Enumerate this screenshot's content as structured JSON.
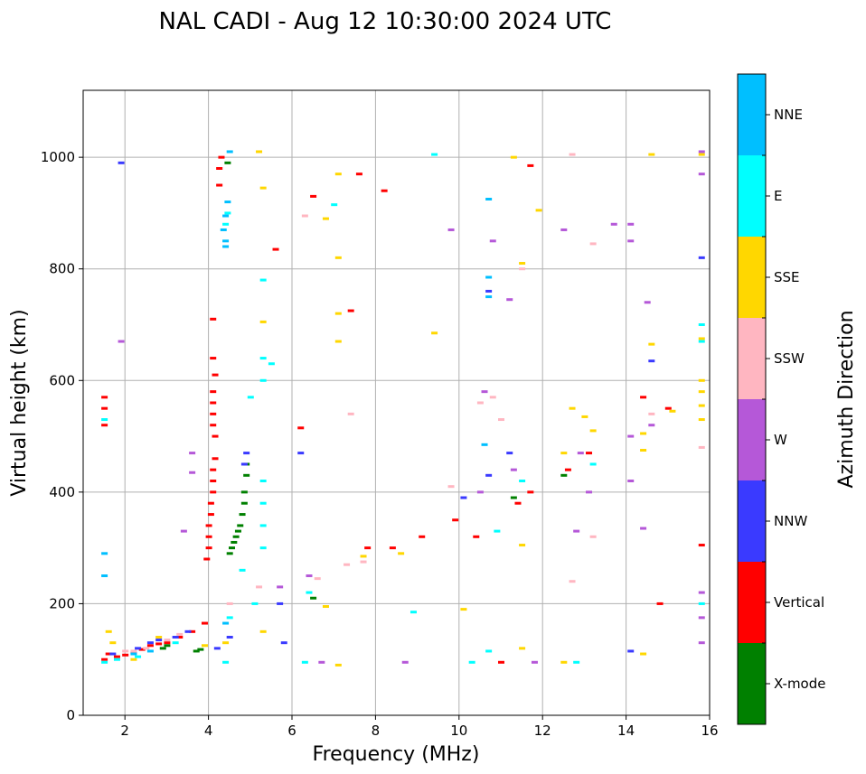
{
  "chart_data": {
    "type": "scatter",
    "title": "NAL CADI - Aug 12 10:30:00 2024 UTC",
    "xlabel": "Frequency (MHz)",
    "ylabel": "Virtual height (km)",
    "xlim": [
      1,
      16
    ],
    "ylim": [
      0,
      1120
    ],
    "xticks": [
      2,
      4,
      6,
      8,
      10,
      12,
      14,
      16
    ],
    "yticks": [
      0,
      200,
      400,
      600,
      800,
      1000
    ],
    "grid": true,
    "colorbar": {
      "label": "Azimuth Direction",
      "categories": [
        {
          "name": "X-mode",
          "color": "#008000"
        },
        {
          "name": "Vertical",
          "color": "#ff0000"
        },
        {
          "name": "NNW",
          "color": "#3a3aff"
        },
        {
          "name": "W",
          "color": "#b558d8"
        },
        {
          "name": "SSW",
          "color": "#ffb6c1"
        },
        {
          "name": "SSE",
          "color": "#ffd700"
        },
        {
          "name": "E",
          "color": "#00ffff"
        },
        {
          "name": "NNE",
          "color": "#00bfff"
        }
      ]
    },
    "series": [
      {
        "name": "X-mode",
        "points": [
          [
            2.9,
            120
          ],
          [
            3.0,
            125
          ],
          [
            3.7,
            115
          ],
          [
            3.8,
            118
          ],
          [
            4.5,
            290
          ],
          [
            4.55,
            300
          ],
          [
            4.6,
            310
          ],
          [
            4.65,
            320
          ],
          [
            4.7,
            330
          ],
          [
            4.75,
            340
          ],
          [
            4.8,
            360
          ],
          [
            4.85,
            380
          ],
          [
            4.85,
            400
          ],
          [
            4.9,
            430
          ],
          [
            4.9,
            450
          ],
          [
            4.45,
            990
          ],
          [
            12.5,
            430
          ],
          [
            11.3,
            390
          ],
          [
            6.5,
            210
          ]
        ]
      },
      {
        "name": "Vertical",
        "points": [
          [
            1.5,
            100
          ],
          [
            1.6,
            110
          ],
          [
            1.8,
            105
          ],
          [
            2.0,
            108
          ],
          [
            2.2,
            112
          ],
          [
            2.4,
            118
          ],
          [
            2.6,
            125
          ],
          [
            2.8,
            128
          ],
          [
            3.0,
            130
          ],
          [
            3.3,
            140
          ],
          [
            3.6,
            150
          ],
          [
            3.9,
            165
          ],
          [
            3.95,
            280
          ],
          [
            4.0,
            300
          ],
          [
            4.0,
            320
          ],
          [
            4.0,
            340
          ],
          [
            4.05,
            360
          ],
          [
            4.05,
            380
          ],
          [
            4.1,
            400
          ],
          [
            4.1,
            420
          ],
          [
            4.1,
            440
          ],
          [
            4.15,
            460
          ],
          [
            4.15,
            500
          ],
          [
            4.1,
            520
          ],
          [
            4.1,
            540
          ],
          [
            4.1,
            560
          ],
          [
            4.1,
            580
          ],
          [
            4.15,
            610
          ],
          [
            4.1,
            640
          ],
          [
            4.1,
            710
          ],
          [
            4.25,
            950
          ],
          [
            4.25,
            980
          ],
          [
            4.3,
            1000
          ],
          [
            1.5,
            520
          ],
          [
            1.5,
            550
          ],
          [
            1.5,
            570
          ],
          [
            7.6,
            970
          ],
          [
            8.2,
            940
          ],
          [
            6.5,
            930
          ],
          [
            7.8,
            300
          ],
          [
            8.4,
            300
          ],
          [
            9.1,
            320
          ],
          [
            9.9,
            350
          ],
          [
            10.4,
            320
          ],
          [
            11.7,
            400
          ],
          [
            11.4,
            380
          ],
          [
            12.6,
            440
          ],
          [
            13.1,
            470
          ],
          [
            14.4,
            570
          ],
          [
            14.8,
            200
          ],
          [
            15.0,
            550
          ],
          [
            15.8,
            305
          ],
          [
            11.0,
            95
          ],
          [
            11.7,
            985
          ],
          [
            6.2,
            515
          ],
          [
            5.6,
            835
          ],
          [
            7.4,
            725
          ]
        ]
      },
      {
        "name": "NNW",
        "points": [
          [
            1.7,
            110
          ],
          [
            2.3,
            120
          ],
          [
            2.6,
            130
          ],
          [
            2.8,
            135
          ],
          [
            3.2,
            140
          ],
          [
            3.5,
            150
          ],
          [
            4.2,
            120
          ],
          [
            4.5,
            140
          ],
          [
            4.85,
            450
          ],
          [
            4.9,
            470
          ],
          [
            5.7,
            200
          ],
          [
            6.2,
            470
          ],
          [
            10.7,
            760
          ],
          [
            10.7,
            430
          ],
          [
            11.2,
            470
          ],
          [
            14.1,
            115
          ],
          [
            14.6,
            635
          ],
          [
            15.8,
            820
          ],
          [
            1.9,
            990
          ],
          [
            10.1,
            390
          ],
          [
            5.8,
            130
          ]
        ]
      },
      {
        "name": "W",
        "points": [
          [
            3.4,
            330
          ],
          [
            3.6,
            470
          ],
          [
            3.6,
            435
          ],
          [
            5.7,
            230
          ],
          [
            6.4,
            250
          ],
          [
            6.7,
            95
          ],
          [
            8.7,
            95
          ],
          [
            9.8,
            870
          ],
          [
            10.5,
            400
          ],
          [
            10.8,
            850
          ],
          [
            11.2,
            745
          ],
          [
            11.3,
            440
          ],
          [
            12.5,
            870
          ],
          [
            13.1,
            400
          ],
          [
            12.8,
            330
          ],
          [
            13.7,
            880
          ],
          [
            14.1,
            420
          ],
          [
            14.1,
            500
          ],
          [
            14.1,
            880
          ],
          [
            14.1,
            850
          ],
          [
            14.4,
            335
          ],
          [
            14.5,
            740
          ],
          [
            15.8,
            1010
          ],
          [
            15.8,
            970
          ],
          [
            15.8,
            220
          ],
          [
            15.8,
            175
          ],
          [
            15.8,
            130
          ],
          [
            11.8,
            95
          ],
          [
            12.9,
            470
          ],
          [
            14.6,
            520
          ],
          [
            1.9,
            670
          ],
          [
            10.6,
            580
          ]
        ]
      },
      {
        "name": "SSW",
        "points": [
          [
            2.0,
            115
          ],
          [
            2.2,
            115
          ],
          [
            2.5,
            120
          ],
          [
            3.0,
            135
          ],
          [
            3.3,
            145
          ],
          [
            4.5,
            200
          ],
          [
            5.2,
            230
          ],
          [
            6.6,
            245
          ],
          [
            7.3,
            270
          ],
          [
            7.7,
            275
          ],
          [
            9.8,
            410
          ],
          [
            10.5,
            560
          ],
          [
            11.0,
            530
          ],
          [
            12.7,
            240
          ],
          [
            13.2,
            320
          ],
          [
            13.2,
            845
          ],
          [
            12.7,
            1005
          ],
          [
            14.6,
            540
          ],
          [
            15.8,
            480
          ],
          [
            10.8,
            570
          ],
          [
            6.3,
            895
          ],
          [
            7.4,
            540
          ],
          [
            11.5,
            800
          ]
        ]
      },
      {
        "name": "SSE",
        "points": [
          [
            1.6,
            150
          ],
          [
            1.7,
            130
          ],
          [
            2.2,
            100
          ],
          [
            2.8,
            140
          ],
          [
            3.9,
            125
          ],
          [
            4.4,
            130
          ],
          [
            5.3,
            150
          ],
          [
            6.8,
            195
          ],
          [
            7.1,
            90
          ],
          [
            7.1,
            670
          ],
          [
            7.1,
            720
          ],
          [
            7.1,
            820
          ],
          [
            7.1,
            970
          ],
          [
            7.7,
            285
          ],
          [
            8.6,
            290
          ],
          [
            9.4,
            685
          ],
          [
            10.1,
            190
          ],
          [
            11.5,
            305
          ],
          [
            11.5,
            120
          ],
          [
            11.9,
            905
          ],
          [
            12.5,
            470
          ],
          [
            12.7,
            550
          ],
          [
            13.0,
            535
          ],
          [
            13.2,
            510
          ],
          [
            14.4,
            505
          ],
          [
            14.4,
            475
          ],
          [
            14.6,
            665
          ],
          [
            14.6,
            1005
          ],
          [
            15.8,
            1005
          ],
          [
            15.8,
            675
          ],
          [
            15.8,
            600
          ],
          [
            15.8,
            580
          ],
          [
            15.8,
            555
          ],
          [
            15.8,
            530
          ],
          [
            5.3,
            945
          ],
          [
            5.3,
            705
          ],
          [
            5.2,
            1010
          ],
          [
            6.8,
            890
          ],
          [
            11.3,
            1000
          ],
          [
            11.5,
            810
          ],
          [
            12.5,
            95
          ],
          [
            14.4,
            110
          ],
          [
            15.1,
            545
          ]
        ]
      },
      {
        "name": "E",
        "points": [
          [
            1.5,
            95
          ],
          [
            1.8,
            100
          ],
          [
            2.3,
            105
          ],
          [
            3.2,
            130
          ],
          [
            4.4,
            95
          ],
          [
            4.5,
            175
          ],
          [
            5.1,
            200
          ],
          [
            5.3,
            300
          ],
          [
            5.3,
            340
          ],
          [
            5.3,
            380
          ],
          [
            5.3,
            420
          ],
          [
            5.3,
            600
          ],
          [
            5.3,
            640
          ],
          [
            5.3,
            780
          ],
          [
            5.0,
            570
          ],
          [
            4.8,
            260
          ],
          [
            6.4,
            220
          ],
          [
            8.9,
            185
          ],
          [
            9.4,
            1005
          ],
          [
            10.3,
            95
          ],
          [
            10.7,
            115
          ],
          [
            10.9,
            330
          ],
          [
            11.5,
            420
          ],
          [
            12.8,
            95
          ],
          [
            13.2,
            450
          ],
          [
            15.8,
            700
          ],
          [
            15.8,
            670
          ],
          [
            15.8,
            200
          ],
          [
            4.4,
            880
          ],
          [
            4.45,
            900
          ],
          [
            1.5,
            530
          ],
          [
            7.0,
            915
          ],
          [
            6.3,
            95
          ],
          [
            5.5,
            630
          ]
        ]
      },
      {
        "name": "NNE",
        "points": [
          [
            1.5,
            250
          ],
          [
            1.5,
            290
          ],
          [
            2.2,
            110
          ],
          [
            2.6,
            115
          ],
          [
            4.4,
            840
          ],
          [
            4.35,
            870
          ],
          [
            4.4,
            895
          ],
          [
            4.45,
            920
          ],
          [
            4.4,
            850
          ],
          [
            10.7,
            925
          ],
          [
            10.7,
            785
          ],
          [
            10.7,
            750
          ],
          [
            10.6,
            485
          ],
          [
            4.5,
            1010
          ],
          [
            4.4,
            165
          ]
        ]
      }
    ]
  }
}
